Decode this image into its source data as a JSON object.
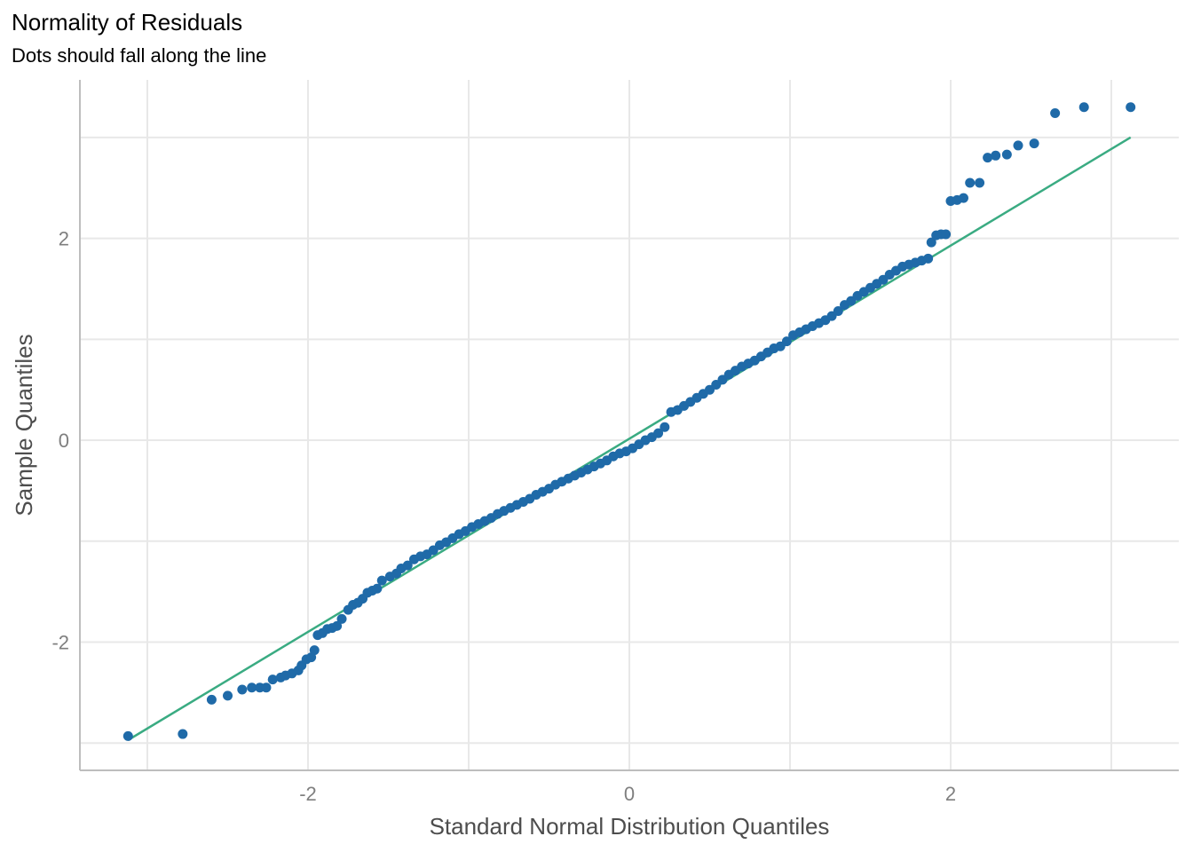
{
  "chart_data": {
    "type": "scatter",
    "title": "Normality of Residuals",
    "subtitle": "Dots should fall along the line",
    "xlabel": "Standard Normal Distribution Quantiles",
    "ylabel": "Sample Quantiles",
    "xlim": [
      -3.42,
      3.42
    ],
    "ylim": [
      -3.27,
      3.57
    ],
    "x_ticks": [
      -2,
      0,
      2
    ],
    "x_tick_labels": [
      "-2",
      "0",
      "2"
    ],
    "y_ticks": [
      -2,
      0,
      2
    ],
    "y_tick_labels": [
      "-2",
      "0",
      "2"
    ],
    "grid": true,
    "colors": {
      "points": "#1f6aa8",
      "line": "#3aab82",
      "grid": "#e8e8e8",
      "axis": "#bdbdbd"
    },
    "reference_line": {
      "x": [
        -3.12,
        3.12
      ],
      "y": [
        -2.97,
        3.0
      ]
    },
    "x": [
      -3.12,
      -2.78,
      -2.6,
      -2.5,
      -2.41,
      -2.35,
      -2.3,
      -2.26,
      -2.22,
      -2.17,
      -2.14,
      -2.1,
      -2.06,
      -2.04,
      -2.01,
      -1.98,
      -1.96,
      -1.94,
      -1.91,
      -1.88,
      -1.85,
      -1.82,
      -1.79,
      -1.75,
      -1.72,
      -1.69,
      -1.66,
      -1.63,
      -1.6,
      -1.57,
      -1.54,
      -1.49,
      -1.45,
      -1.42,
      -1.38,
      -1.34,
      -1.3,
      -1.26,
      -1.22,
      -1.18,
      -1.14,
      -1.1,
      -1.06,
      -1.02,
      -0.98,
      -0.94,
      -0.9,
      -0.86,
      -0.82,
      -0.78,
      -0.74,
      -0.7,
      -0.66,
      -0.62,
      -0.58,
      -0.54,
      -0.5,
      -0.46,
      -0.42,
      -0.38,
      -0.34,
      -0.3,
      -0.26,
      -0.22,
      -0.18,
      -0.14,
      -0.1,
      -0.06,
      -0.02,
      0.02,
      0.06,
      0.1,
      0.14,
      0.18,
      0.22,
      0.26,
      0.3,
      0.34,
      0.38,
      0.42,
      0.46,
      0.5,
      0.54,
      0.58,
      0.62,
      0.66,
      0.7,
      0.74,
      0.78,
      0.82,
      0.86,
      0.9,
      0.94,
      0.98,
      1.02,
      1.06,
      1.1,
      1.14,
      1.18,
      1.22,
      1.26,
      1.3,
      1.34,
      1.38,
      1.42,
      1.46,
      1.5,
      1.54,
      1.58,
      1.62,
      1.66,
      1.7,
      1.74,
      1.78,
      1.82,
      1.86,
      1.88,
      1.91,
      1.94,
      1.97,
      2.0,
      2.04,
      2.08,
      2.12,
      2.18,
      2.23,
      2.28,
      2.35,
      2.42,
      2.52,
      2.65,
      2.83,
      3.12
    ],
    "y": [
      -2.93,
      -2.91,
      -2.57,
      -2.53,
      -2.47,
      -2.45,
      -2.45,
      -2.45,
      -2.37,
      -2.35,
      -2.33,
      -2.31,
      -2.28,
      -2.23,
      -2.17,
      -2.15,
      -2.08,
      -1.93,
      -1.91,
      -1.87,
      -1.86,
      -1.84,
      -1.77,
      -1.68,
      -1.63,
      -1.61,
      -1.57,
      -1.51,
      -1.49,
      -1.47,
      -1.39,
      -1.35,
      -1.32,
      -1.27,
      -1.24,
      -1.18,
      -1.15,
      -1.13,
      -1.09,
      -1.04,
      -1.01,
      -0.97,
      -0.93,
      -0.9,
      -0.86,
      -0.83,
      -0.8,
      -0.77,
      -0.73,
      -0.7,
      -0.67,
      -0.64,
      -0.61,
      -0.58,
      -0.54,
      -0.51,
      -0.48,
      -0.44,
      -0.41,
      -0.38,
      -0.35,
      -0.32,
      -0.29,
      -0.26,
      -0.23,
      -0.2,
      -0.16,
      -0.13,
      -0.11,
      -0.08,
      -0.04,
      0.0,
      0.03,
      0.07,
      0.13,
      0.28,
      0.3,
      0.34,
      0.38,
      0.42,
      0.46,
      0.5,
      0.55,
      0.6,
      0.65,
      0.69,
      0.73,
      0.76,
      0.79,
      0.83,
      0.87,
      0.91,
      0.93,
      0.98,
      1.04,
      1.07,
      1.1,
      1.13,
      1.16,
      1.19,
      1.23,
      1.28,
      1.34,
      1.38,
      1.43,
      1.47,
      1.51,
      1.55,
      1.59,
      1.64,
      1.68,
      1.72,
      1.74,
      1.76,
      1.78,
      1.8,
      1.96,
      2.03,
      2.04,
      2.04,
      2.37,
      2.38,
      2.4,
      2.55,
      2.55,
      2.8,
      2.82,
      2.83,
      2.92,
      2.94,
      3.24,
      3.3,
      3.3
    ]
  }
}
